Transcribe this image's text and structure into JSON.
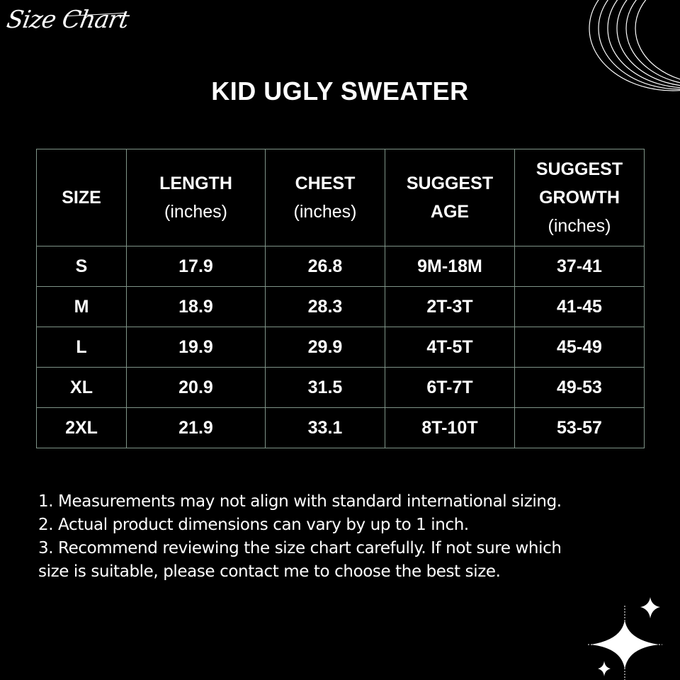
{
  "logo_text": "Size Chart",
  "title": "KID UGLY SWEATER",
  "table": {
    "headers": [
      {
        "main": "SIZE",
        "sub": ""
      },
      {
        "main": "LENGTH",
        "sub": "(inches)"
      },
      {
        "main": "CHEST",
        "sub": "(inches)"
      },
      {
        "main": "SUGGEST AGE",
        "sub": ""
      },
      {
        "main": "SUGGEST GROWTH",
        "sub": "(inches)"
      }
    ],
    "rows": [
      [
        "S",
        "17.9",
        "26.8",
        "9M-18M",
        "37-41"
      ],
      [
        "M",
        "18.9",
        "28.3",
        "2T-3T",
        "41-45"
      ],
      [
        "L",
        "19.9",
        "29.9",
        "4T-5T",
        "45-49"
      ],
      [
        "XL",
        "20.9",
        "31.5",
        "6T-7T",
        "49-53"
      ],
      [
        "2XL",
        "21.9",
        "33.1",
        "8T-10T",
        "53-57"
      ]
    ]
  },
  "notes": [
    "1. Measurements may not align with standard international sizing.",
    "2. Actual product dimensions can vary by up to 1 inch.",
    "3. Recommend reviewing the size chart carefully. If not sure which",
    "size is suitable, please contact me to choose the best size."
  ],
  "colors": {
    "background": "#000000",
    "text": "#ffffff",
    "table_border": "#7f9488"
  },
  "decorations": [
    "concentric-arcs-icon",
    "sparkle-stars-icon"
  ]
}
